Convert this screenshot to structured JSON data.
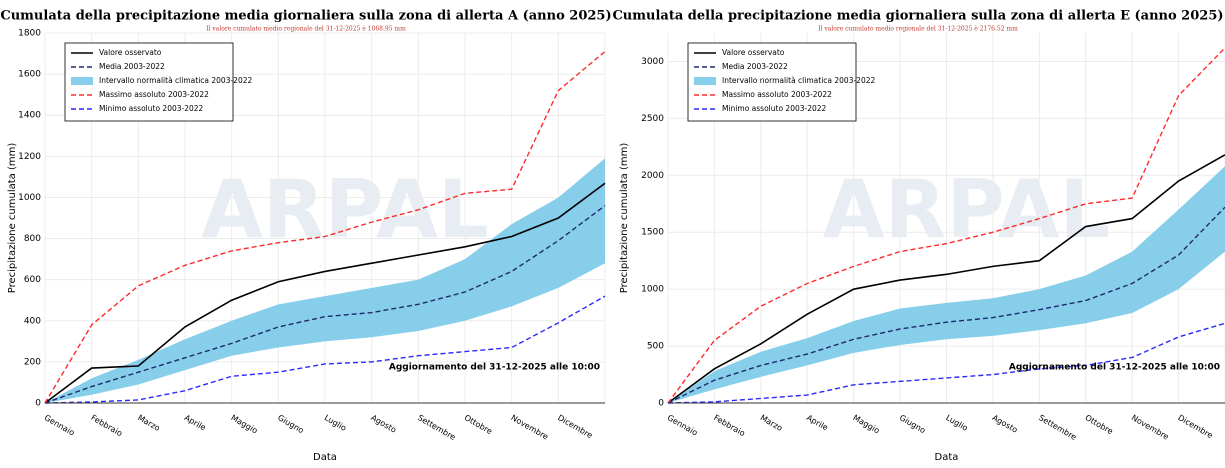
{
  "chart_data": [
    {
      "type": "line",
      "title": "Cumulata della precipitazione media giornaliera sulla zona di allerta A (anno 2025)",
      "subtitle": "Il valore cumulato medio regionale del 31-12-2025 è 1068.95 mm",
      "annotation": "Aggiornamento del 31-12-2025 alle 10:00",
      "watermark": "ARPAL",
      "x_label": "Data",
      "y_label": "Precipitazione cumulata (mm)",
      "categories": [
        "Gennaio",
        "Febbraio",
        "Marzo",
        "Aprile",
        "Maggio",
        "Giugno",
        "Luglio",
        "Agosto",
        "Settembre",
        "Ottobre",
        "Novembre",
        "Dicembre",
        null
      ],
      "ylim": [
        0,
        1800
      ],
      "yticks": [
        0,
        200,
        400,
        600,
        800,
        1000,
        1200,
        1400,
        1600,
        1800
      ],
      "grid": true,
      "legend": "upper left",
      "series": [
        {
          "name": "Valore osservato",
          "color": "#000000",
          "style": "solid",
          "values": [
            0,
            170,
            180,
            370,
            500,
            590,
            640,
            680,
            720,
            760,
            810,
            900,
            1069
          ]
        },
        {
          "name": "Media 2003-2022",
          "color": "#1f2a6e",
          "style": "dashed",
          "values": [
            0,
            80,
            150,
            220,
            290,
            370,
            420,
            440,
            480,
            540,
            640,
            790,
            960
          ]
        },
        {
          "name": "Intervallo normalità climatica 2003-2022",
          "color": "#87ceeb",
          "style": "band",
          "low": [
            0,
            40,
            90,
            160,
            230,
            270,
            300,
            320,
            350,
            400,
            470,
            560,
            680
          ],
          "high": [
            0,
            120,
            210,
            310,
            400,
            480,
            520,
            560,
            600,
            700,
            870,
            1000,
            1190
          ]
        },
        {
          "name": "Massimo assoluto 2003-2022",
          "color": "#ff2a2a",
          "style": "dashed",
          "values": [
            0,
            380,
            570,
            670,
            740,
            780,
            810,
            880,
            940,
            1020,
            1040,
            1520,
            1710
          ]
        },
        {
          "name": "Minimo assoluto 2003-2022",
          "color": "#2a2aff",
          "style": "dashed",
          "values": [
            0,
            5,
            15,
            60,
            130,
            150,
            190,
            200,
            230,
            250,
            270,
            390,
            520
          ]
        }
      ]
    },
    {
      "type": "line",
      "title": "Cumulata della precipitazione media giornaliera sulla zona di allerta E (anno 2025)",
      "subtitle": "Il valore cumulato medio regionale del 31-12-2025 è 2176.52 mm",
      "annotation": "Aggiornamento del 31-12-2025 alle 10:00",
      "watermark": "ARPAL",
      "x_label": "Data",
      "y_label": "Precipitazione cumulata (mm)",
      "categories": [
        "Gennaio",
        "Febbraio",
        "Marzo",
        "Aprile",
        "Maggio",
        "Giugno",
        "Luglio",
        "Agosto",
        "Settembre",
        "Ottobre",
        "Novembre",
        "Dicembre",
        null
      ],
      "ylim": [
        0,
        3250
      ],
      "yticks": [
        0,
        500,
        1000,
        1500,
        2000,
        2500,
        3000
      ],
      "grid": true,
      "legend": "upper left",
      "series": [
        {
          "name": "Valore osservato",
          "color": "#000000",
          "style": "solid",
          "values": [
            0,
            300,
            520,
            780,
            1000,
            1080,
            1130,
            1200,
            1250,
            1550,
            1620,
            1950,
            2180
          ]
        },
        {
          "name": "Media 2003-2022",
          "color": "#1f2a6e",
          "style": "dashed",
          "values": [
            0,
            200,
            330,
            430,
            560,
            650,
            710,
            750,
            820,
            900,
            1050,
            1300,
            1720
          ]
        },
        {
          "name": "Intervallo normalità climatica 2003-2022",
          "color": "#87ceeb",
          "style": "band",
          "low": [
            0,
            120,
            230,
            330,
            440,
            510,
            560,
            590,
            640,
            700,
            790,
            1000,
            1330
          ],
          "high": [
            0,
            280,
            450,
            570,
            720,
            830,
            880,
            920,
            1000,
            1120,
            1330,
            1700,
            2080
          ]
        },
        {
          "name": "Massimo assoluto 2003-2022",
          "color": "#ff2a2a",
          "style": "dashed",
          "values": [
            0,
            550,
            850,
            1050,
            1200,
            1330,
            1400,
            1500,
            1620,
            1750,
            1800,
            2700,
            3120
          ]
        },
        {
          "name": "Minimo assoluto 2003-2022",
          "color": "#2a2aff",
          "style": "dashed",
          "values": [
            0,
            10,
            40,
            70,
            160,
            190,
            220,
            250,
            300,
            330,
            400,
            580,
            700
          ]
        }
      ]
    }
  ]
}
